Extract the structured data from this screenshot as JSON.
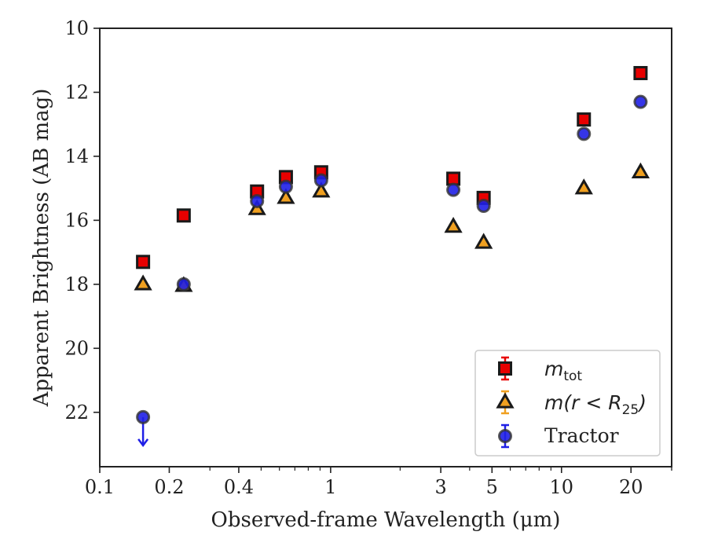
{
  "chart_data": {
    "type": "scatter",
    "xlabel": "Observed-frame Wavelength (μm)",
    "ylabel": "Apparent Brightness (AB mag)",
    "x_scale": "log",
    "xlim": [
      0.1,
      30
    ],
    "ylim": [
      23.7,
      10
    ],
    "y_inverted": true,
    "x_ticks": [
      0.1,
      0.2,
      0.4,
      1,
      3,
      5,
      10,
      20
    ],
    "x_tick_labels": [
      "0.1",
      "0.2",
      "0.4",
      "1",
      "3",
      "5",
      "10",
      "20"
    ],
    "y_ticks": [
      10,
      12,
      14,
      16,
      18,
      20,
      22
    ],
    "y_tick_labels": [
      "10",
      "12",
      "14",
      "16",
      "18",
      "20",
      "22"
    ],
    "grid": false,
    "legend_position": "lower-right",
    "series": [
      {
        "name": "m_tot",
        "legend_label": "mtot",
        "marker": "square",
        "color": "#e80000",
        "points": [
          {
            "x": 0.154,
            "y": 17.3
          },
          {
            "x": 0.231,
            "y": 15.85
          },
          {
            "x": 0.48,
            "y": 15.1
          },
          {
            "x": 0.64,
            "y": 14.65
          },
          {
            "x": 0.91,
            "y": 14.5
          },
          {
            "x": 3.4,
            "y": 14.7
          },
          {
            "x": 4.6,
            "y": 15.3
          },
          {
            "x": 12.5,
            "y": 12.85
          },
          {
            "x": 22.0,
            "y": 11.4
          }
        ]
      },
      {
        "name": "m(r<R25)",
        "legend_label": "m(r < R25)",
        "marker": "triangle",
        "color": "#f0a020",
        "points": [
          {
            "x": 0.154,
            "y": 18.0
          },
          {
            "x": 0.231,
            "y": 18.05
          },
          {
            "x": 0.48,
            "y": 15.65
          },
          {
            "x": 0.64,
            "y": 15.3
          },
          {
            "x": 0.91,
            "y": 15.1
          },
          {
            "x": 3.4,
            "y": 16.2
          },
          {
            "x": 4.6,
            "y": 16.7
          },
          {
            "x": 12.5,
            "y": 15.0
          },
          {
            "x": 22.0,
            "y": 14.5
          }
        ]
      },
      {
        "name": "Tractor",
        "legend_label": "Tractor",
        "marker": "circle",
        "color": "#1f1fe6",
        "points": [
          {
            "x": 0.154,
            "y": 22.15,
            "upper_limit": true
          },
          {
            "x": 0.231,
            "y": 18.0
          },
          {
            "x": 0.48,
            "y": 15.4
          },
          {
            "x": 0.64,
            "y": 14.95
          },
          {
            "x": 0.91,
            "y": 14.75
          },
          {
            "x": 3.4,
            "y": 15.05
          },
          {
            "x": 4.6,
            "y": 15.55
          },
          {
            "x": 12.5,
            "y": 13.3
          },
          {
            "x": 22.0,
            "y": 12.3
          }
        ]
      }
    ]
  },
  "legend": {
    "mtot_main": "m",
    "mtot_sub": "tot",
    "mr_prefix": "m(r < R",
    "mr_sub": "25",
    "mr_suffix": ")",
    "tractor": "Tractor"
  }
}
